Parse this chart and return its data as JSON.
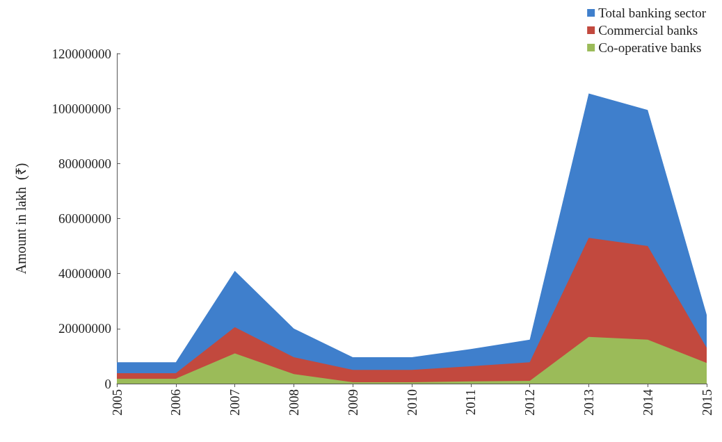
{
  "chart_data": {
    "type": "area",
    "ylabel": "Amount in lakh  (₹)",
    "categories": [
      "2005",
      "2006",
      "2007",
      "2008",
      "2009",
      "2010",
      "2011",
      "2012",
      "2013",
      "2014",
      "2015"
    ],
    "series": [
      {
        "name": "Total banking sector",
        "color": "#3f7fcc",
        "values": [
          7800000,
          7800000,
          41000000,
          20000000,
          9600000,
          9600000,
          12600000,
          16000000,
          105500000,
          99500000,
          25000000
        ]
      },
      {
        "name": "Commercial banks",
        "color": "#c2493e",
        "values": [
          3800000,
          3800000,
          20500000,
          9600000,
          5000000,
          5000000,
          6300000,
          7800000,
          53000000,
          50000000,
          13000000
        ]
      },
      {
        "name": "Co-operative banks",
        "color": "#9bbb59",
        "values": [
          1800000,
          1800000,
          11000000,
          3500000,
          500000,
          500000,
          800000,
          1000000,
          17000000,
          16000000,
          7500000
        ]
      }
    ],
    "ylim": [
      0,
      120000000
    ],
    "yticks": [
      0,
      20000000,
      40000000,
      60000000,
      80000000,
      100000000,
      120000000
    ],
    "grid": false,
    "legend": "top right"
  }
}
